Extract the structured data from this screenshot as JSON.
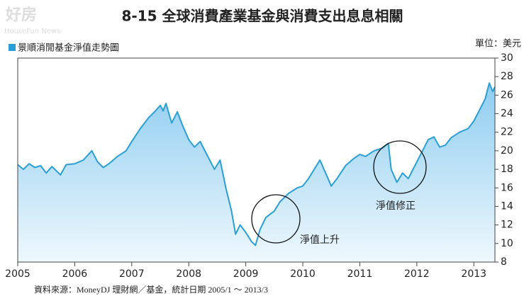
{
  "chart_data": {
    "type": "line",
    "title": "8-15 全球消費產業基金與消費支出息息相關",
    "watermark": "好房",
    "watermark_sub": "HouseFun News",
    "unit": "單位：美元",
    "source": "資料來源：MoneyDJ 理財網／基金，統計日期 2005/1 ～ 2013/3",
    "annotations": [
      "淨值上升",
      "淨值修正"
    ],
    "xlim": [
      2005,
      2013.37
    ],
    "xticks": [
      2005,
      2006,
      2007,
      2008,
      2009,
      2010,
      2011,
      2012,
      2013
    ],
    "ylim": [
      8,
      30
    ],
    "yticks": [
      8,
      10,
      12,
      14,
      16,
      18,
      20,
      22,
      24,
      26,
      28,
      30
    ],
    "series": [
      {
        "name": "景順消閒基金淨值走勢圖",
        "color": "#2a9fd6",
        "x": [
          2005.0,
          2005.1,
          2005.2,
          2005.3,
          2005.4,
          2005.5,
          2005.6,
          2005.75,
          2005.85,
          2006.0,
          2006.15,
          2006.3,
          2006.4,
          2006.5,
          2006.6,
          2006.75,
          2006.9,
          2007.0,
          2007.15,
          2007.3,
          2007.4,
          2007.5,
          2007.55,
          2007.6,
          2007.7,
          2007.8,
          2007.9,
          2008.0,
          2008.1,
          2008.2,
          2008.3,
          2008.45,
          2008.55,
          2008.65,
          2008.75,
          2008.82,
          2008.9,
          2009.0,
          2009.1,
          2009.17,
          2009.25,
          2009.35,
          2009.5,
          2009.6,
          2009.75,
          2009.9,
          2010.0,
          2010.1,
          2010.2,
          2010.3,
          2010.4,
          2010.5,
          2010.6,
          2010.75,
          2010.9,
          2011.0,
          2011.1,
          2011.25,
          2011.4,
          2011.5,
          2011.55,
          2011.65,
          2011.75,
          2011.85,
          2011.95,
          2012.1,
          2012.2,
          2012.3,
          2012.4,
          2012.5,
          2012.6,
          2012.75,
          2012.9,
          2013.0,
          2013.1,
          2013.2,
          2013.27,
          2013.33,
          2013.37
        ],
        "values": [
          18.5,
          18.0,
          18.6,
          18.2,
          18.4,
          17.6,
          18.3,
          17.4,
          18.5,
          18.6,
          19.0,
          20.0,
          18.8,
          18.2,
          18.6,
          19.4,
          20.0,
          21.0,
          22.4,
          23.6,
          24.2,
          24.9,
          24.3,
          25.1,
          23.0,
          24.2,
          22.6,
          21.2,
          20.4,
          21.0,
          19.8,
          18.0,
          19.0,
          16.0,
          13.5,
          11.0,
          12.0,
          11.2,
          10.2,
          9.8,
          11.5,
          12.8,
          13.5,
          14.5,
          15.4,
          16.0,
          16.2,
          17.0,
          18.0,
          19.0,
          17.6,
          16.2,
          17.0,
          18.4,
          19.2,
          19.6,
          19.4,
          20.0,
          20.3,
          20.8,
          18.0,
          16.6,
          17.6,
          17.0,
          18.2,
          20.0,
          21.2,
          21.5,
          20.4,
          20.6,
          21.4,
          22.0,
          22.4,
          23.2,
          24.4,
          25.6,
          27.3,
          26.4,
          26.9
        ]
      }
    ]
  }
}
